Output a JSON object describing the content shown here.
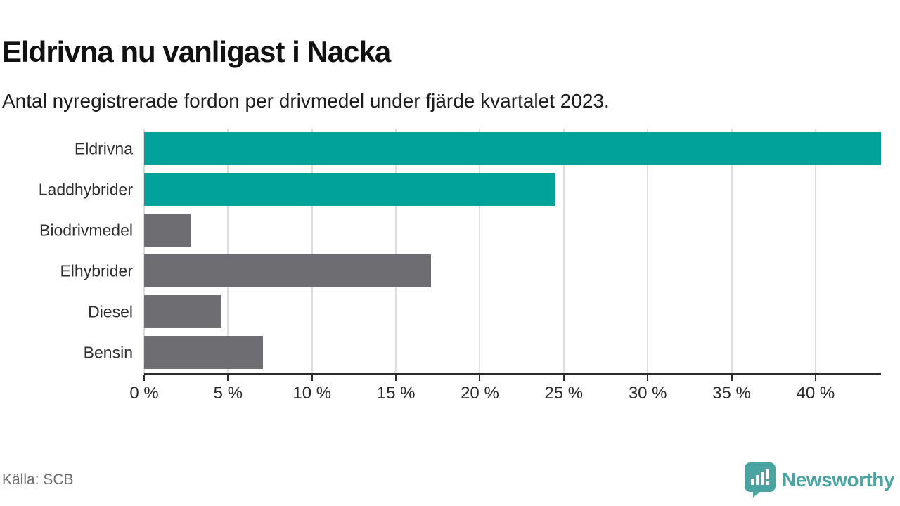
{
  "header": {
    "title": "Eldrivna nu vanligast i Nacka",
    "subtitle": "Antal nyregistrerade fordon per drivmedel under fjärde kvartalet 2023."
  },
  "footer": {
    "source": "Källa: SCB",
    "brand_name": "Newsworthy",
    "brand_icon": "newsworthy-speech-bubble-chart-icon"
  },
  "colors": {
    "highlight_bar": "#00a29a",
    "default_bar": "#6e6e72",
    "gridline": "#dedede",
    "axis": "#2b2b2b",
    "brand": "#4aa5a2",
    "muted_text": "#6e6e6e"
  },
  "chart_data": {
    "type": "bar",
    "orientation": "horizontal",
    "title": "Eldrivna nu vanligast i Nacka",
    "subtitle": "Antal nyregistrerade fordon per drivmedel under fjärde kvartalet 2023.",
    "categories": [
      "Eldrivna",
      "Laddhybrider",
      "Biodrivmedel",
      "Elhybrider",
      "Diesel",
      "Bensin"
    ],
    "values": [
      43.9,
      24.5,
      2.8,
      17.1,
      4.6,
      7.1
    ],
    "unit": "%",
    "bar_colors": [
      "#00a29a",
      "#00a29a",
      "#6e6e72",
      "#6e6e72",
      "#6e6e72",
      "#6e6e72"
    ],
    "xlim": [
      0,
      43.9
    ],
    "x_ticks": [
      0,
      5,
      10,
      15,
      20,
      25,
      30,
      35,
      40
    ],
    "x_tick_labels": [
      "0 %",
      "5 %",
      "10 %",
      "15 %",
      "20 %",
      "25 %",
      "30 %",
      "35 %",
      "40 %"
    ],
    "grid": true,
    "legend": "none"
  }
}
